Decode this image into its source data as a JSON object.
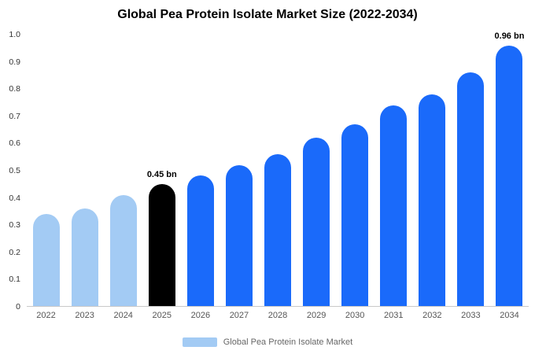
{
  "title": "Global Pea Protein Isolate Market Size (2022-2034)",
  "legend": {
    "label": "Global Pea Protein Isolate Market"
  },
  "colors": {
    "light_blue": "#A3CBF4",
    "primary_blue": "#1A6AFA",
    "highlight_black": "#000000",
    "axis_line": "#C9C9C9",
    "tick_text": "#333333",
    "category_text": "#555555",
    "legend_text": "#666666"
  },
  "chart_data": {
    "type": "bar",
    "title": "Global Pea Protein Isolate Market Size (2022-2034)",
    "categories": [
      "2022",
      "2023",
      "2024",
      "2025",
      "2026",
      "2027",
      "2028",
      "2029",
      "2030",
      "2031",
      "2032",
      "2033",
      "2034"
    ],
    "values": [
      0.34,
      0.36,
      0.41,
      0.45,
      0.48,
      0.52,
      0.56,
      0.62,
      0.67,
      0.74,
      0.78,
      0.86,
      0.96
    ],
    "bar_colors": [
      "#A3CBF4",
      "#A3CBF4",
      "#A3CBF4",
      "#000000",
      "#1A6AFA",
      "#1A6AFA",
      "#1A6AFA",
      "#1A6AFA",
      "#1A6AFA",
      "#1A6AFA",
      "#1A6AFA",
      "#1A6AFA",
      "#1A6AFA"
    ],
    "annotations": [
      {
        "category": "2025",
        "text": "0.45 bn"
      },
      {
        "category": "2034",
        "text": "0.96 bn"
      }
    ],
    "xlabel": "",
    "ylabel": "",
    "ylim": [
      0,
      1.0
    ],
    "yticks": [
      0,
      0.1,
      0.2,
      0.3,
      0.4,
      0.5,
      0.6,
      0.7,
      0.8,
      0.9,
      1.0
    ],
    "ytick_labels": [
      "0",
      "0.1",
      "0.2",
      "0.3",
      "0.4",
      "0.5",
      "0.6",
      "0.7",
      "0.8",
      "0.9",
      "1.0"
    ],
    "grid": false,
    "legend_position": "bottom",
    "units": "bn"
  }
}
